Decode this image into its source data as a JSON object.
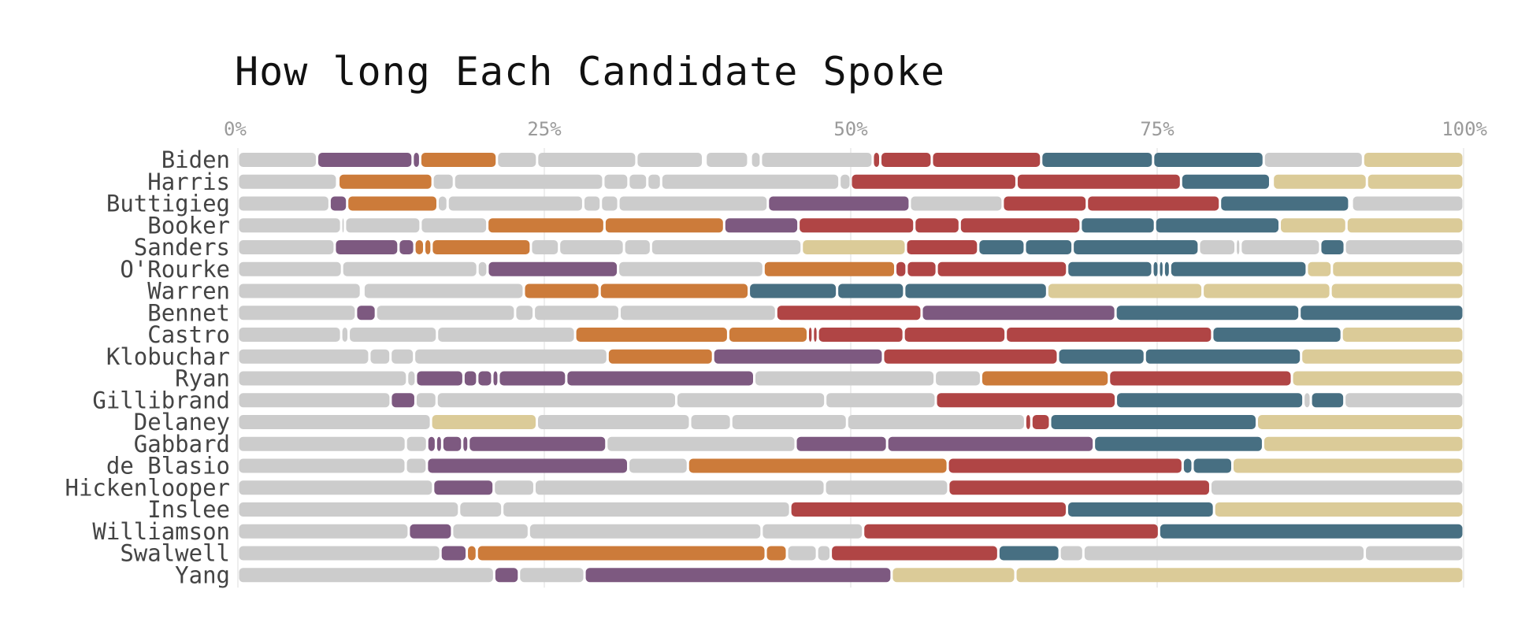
{
  "chart_data": {
    "type": "bar",
    "title": "How long Each Candidate Spoke",
    "xlabel": "",
    "ylabel": "",
    "xlim": [
      0,
      100
    ],
    "x_ticks": [
      "0%",
      "25%",
      "50%",
      "75%",
      "100%"
    ],
    "grid": true,
    "legend": "none",
    "colors": {
      "none": "#cccccc",
      "purple": "#7d5980",
      "orange": "#cc7b3a",
      "red": "#b04545",
      "teal": "#476f82",
      "tan": "#dbcb98"
    },
    "rows": [
      {
        "name": "Biden",
        "segments": [
          [
            "none",
            6.3
          ],
          [
            "purple",
            7.6
          ],
          [
            "purple",
            0.6
          ],
          [
            "orange",
            6.1
          ],
          [
            "none",
            3.2
          ],
          [
            "none",
            7.9
          ],
          [
            "none",
            5.3
          ],
          [
            "none",
            0.2
          ],
          [
            "none",
            3.4
          ],
          [
            "none",
            0.2
          ],
          [
            "none",
            0.8
          ],
          [
            "none",
            8.9
          ],
          [
            "red",
            0.6
          ],
          [
            "red",
            4.1
          ],
          [
            "red",
            8.7
          ],
          [
            "teal",
            8.9
          ],
          [
            "teal",
            8.8
          ],
          [
            "none",
            7.9
          ],
          [
            "tan",
            8.0
          ]
        ]
      },
      {
        "name": "Harris",
        "segments": [
          [
            "none",
            7.9
          ],
          [
            "none",
            0.1
          ],
          [
            "orange",
            7.5
          ],
          [
            "none",
            1.7
          ],
          [
            "none",
            11.9
          ],
          [
            "none",
            2.0
          ],
          [
            "none",
            1.5
          ],
          [
            "none",
            1.1
          ],
          [
            "none",
            14.2
          ],
          [
            "none",
            0.9
          ],
          [
            "red",
            13.2
          ],
          [
            "red",
            13.1
          ],
          [
            "teal",
            7.1
          ],
          [
            "teal",
            0.2
          ],
          [
            "none",
            0.0
          ],
          [
            "tan",
            7.5
          ],
          [
            "tan",
            7.7
          ]
        ]
      },
      {
        "name": "Buttigieg",
        "segments": [
          [
            "none",
            7.3
          ],
          [
            "purple",
            1.4
          ],
          [
            "orange",
            7.2
          ],
          [
            "none",
            0.8
          ],
          [
            "none",
            10.8
          ],
          [
            "none",
            1.4
          ],
          [
            "none",
            1.4
          ],
          [
            "none",
            11.9
          ],
          [
            "purple",
            11.3
          ],
          [
            "none",
            7.4
          ],
          [
            "red",
            6.7
          ],
          [
            "red",
            10.6
          ],
          [
            "teal",
            10.3
          ],
          [
            "none",
            0.2
          ],
          [
            "none",
            8.9
          ]
        ]
      },
      {
        "name": "Booker",
        "segments": [
          [
            "none",
            8.2
          ],
          [
            "none",
            0.3
          ],
          [
            "none",
            6.0
          ],
          [
            "none",
            5.3
          ],
          [
            "orange",
            9.3
          ],
          [
            "orange",
            9.5
          ],
          [
            "purple",
            5.9
          ],
          [
            "red",
            9.2
          ],
          [
            "red",
            3.6
          ],
          [
            "red",
            9.6
          ],
          [
            "teal",
            5.9
          ],
          [
            "teal",
            9.9
          ],
          [
            "tan",
            5.3
          ],
          [
            "tan",
            9.3
          ]
        ]
      },
      {
        "name": "Sanders",
        "segments": [
          [
            "none",
            7.9
          ],
          [
            "purple",
            5.2
          ],
          [
            "purple",
            1.3
          ],
          [
            "orange",
            0.8
          ],
          [
            "orange",
            0.6
          ],
          [
            "orange",
            8.1
          ],
          [
            "none",
            2.3
          ],
          [
            "none",
            5.3
          ],
          [
            "none",
            2.2
          ],
          [
            "none",
            12.3
          ],
          [
            "tan",
            8.5
          ],
          [
            "red",
            5.9
          ],
          [
            "teal",
            3.8
          ],
          [
            "teal",
            3.9
          ],
          [
            "teal",
            10.3
          ],
          [
            "none",
            3.0
          ],
          [
            "none",
            0.4
          ],
          [
            "none",
            6.5
          ],
          [
            "teal",
            2.0
          ],
          [
            "none",
            9.7
          ]
        ]
      },
      {
        "name": "O'Rourke",
        "segments": [
          [
            "none",
            8.3
          ],
          [
            "none",
            10.8
          ],
          [
            "none",
            0.8
          ],
          [
            "purple",
            10.4
          ],
          [
            "none",
            11.6
          ],
          [
            "orange",
            10.5
          ],
          [
            "red",
            0.9
          ],
          [
            "red",
            2.4
          ],
          [
            "red",
            10.4
          ],
          [
            "teal",
            6.8
          ],
          [
            "teal",
            0.5
          ],
          [
            "teal",
            0.4
          ],
          [
            "teal",
            0.5
          ],
          [
            "teal",
            10.9
          ],
          [
            "tan",
            2.0
          ],
          [
            "tan",
            10.5
          ]
        ]
      },
      {
        "name": "Warren",
        "segments": [
          [
            "none",
            9.9
          ],
          [
            "none",
            0.2
          ],
          [
            "none",
            12.9
          ],
          [
            "orange",
            6.1
          ],
          [
            "orange",
            12.0
          ],
          [
            "teal",
            7.1
          ],
          [
            "teal",
            5.4
          ],
          [
            "teal",
            11.5
          ],
          [
            "tan",
            12.5
          ],
          [
            "tan",
            10.3
          ],
          [
            "tan",
            10.7
          ]
        ]
      },
      {
        "name": "Bennet",
        "segments": [
          [
            "none",
            9.5
          ],
          [
            "purple",
            1.6
          ],
          [
            "none",
            11.2
          ],
          [
            "none",
            1.5
          ],
          [
            "none",
            6.9
          ],
          [
            "none",
            12.6
          ],
          [
            "red",
            11.7
          ],
          [
            "purple",
            15.6
          ],
          [
            "teal",
            14.8
          ],
          [
            "teal",
            13.2
          ]
        ]
      },
      {
        "name": "Castro",
        "segments": [
          [
            "none",
            8.3
          ],
          [
            "none",
            0.6
          ],
          [
            "none",
            7.1
          ],
          [
            "none",
            11.1
          ],
          [
            "orange",
            12.3
          ],
          [
            "orange",
            6.4
          ],
          [
            "red",
            0.4
          ],
          [
            "red",
            0.4
          ],
          [
            "red",
            6.9
          ],
          [
            "red",
            8.2
          ],
          [
            "red",
            16.6
          ],
          [
            "teal",
            10.4
          ],
          [
            "tan",
            9.8
          ]
        ]
      },
      {
        "name": "Klobuchar",
        "segments": [
          [
            "none",
            10.6
          ],
          [
            "none",
            1.7
          ],
          [
            "none",
            1.9
          ],
          [
            "none",
            15.6
          ],
          [
            "orange",
            8.5
          ],
          [
            "purple",
            13.7
          ],
          [
            "red",
            14.1
          ],
          [
            "teal",
            7.0
          ],
          [
            "teal",
            12.6
          ],
          [
            "tan",
            13.1
          ]
        ]
      },
      {
        "name": "Ryan",
        "segments": [
          [
            "none",
            13.5
          ],
          [
            "none",
            0.7
          ],
          [
            "purple",
            3.8
          ],
          [
            "purple",
            1.1
          ],
          [
            "purple",
            1.2
          ],
          [
            "purple",
            0.5
          ],
          [
            "purple",
            5.4
          ],
          [
            "purple",
            15.0
          ],
          [
            "none",
            14.4
          ],
          [
            "none",
            3.7
          ],
          [
            "orange",
            10.2
          ],
          [
            "red",
            14.6
          ],
          [
            "tan",
            13.7
          ]
        ]
      },
      {
        "name": "Gillibrand",
        "segments": [
          [
            "none",
            12.3
          ],
          [
            "purple",
            2.0
          ],
          [
            "none",
            1.7
          ],
          [
            "none",
            19.3
          ],
          [
            "none",
            12.0
          ],
          [
            "none",
            8.9
          ],
          [
            "red",
            14.5
          ],
          [
            "teal",
            15.1
          ],
          [
            "none",
            0.6
          ],
          [
            "teal",
            2.7
          ],
          [
            "none",
            9.6
          ]
        ]
      },
      {
        "name": "Delaney",
        "segments": [
          [
            "none",
            15.5
          ],
          [
            "tan",
            8.5
          ],
          [
            "none",
            12.3
          ],
          [
            "none",
            3.3
          ],
          [
            "none",
            9.3
          ],
          [
            "none",
            14.3
          ],
          [
            "red",
            0.5
          ],
          [
            "red",
            1.5
          ],
          [
            "teal",
            16.6
          ],
          [
            "tan",
            16.6
          ]
        ]
      },
      {
        "name": "Gabbard",
        "segments": [
          [
            "none",
            13.4
          ],
          [
            "none",
            1.7
          ],
          [
            "purple",
            0.7
          ],
          [
            "purple",
            0.5
          ],
          [
            "purple",
            1.6
          ],
          [
            "purple",
            0.5
          ],
          [
            "purple",
            11.0
          ],
          [
            "none",
            15.1
          ],
          [
            "purple",
            7.3
          ],
          [
            "purple",
            16.5
          ],
          [
            "teal",
            13.5
          ],
          [
            "tan",
            16.0
          ]
        ]
      },
      {
        "name": "de Blasio",
        "segments": [
          [
            "none",
            13.5
          ],
          [
            "none",
            1.7
          ],
          [
            "purple",
            16.2
          ],
          [
            "none",
            4.8
          ],
          [
            "orange",
            20.9
          ],
          [
            "red",
            18.9
          ],
          [
            "teal",
            0.8
          ],
          [
            "teal",
            3.2
          ],
          [
            "tan",
            18.6
          ]
        ]
      },
      {
        "name": "Hickenlooper",
        "segments": [
          [
            "none",
            15.8
          ],
          [
            "purple",
            4.9
          ],
          [
            "none",
            3.3
          ],
          [
            "none",
            23.5
          ],
          [
            "none",
            10.0
          ],
          [
            "red",
            21.2
          ],
          [
            "none",
            20.5
          ]
        ]
      },
      {
        "name": "Inslee",
        "segments": [
          [
            "none",
            17.9
          ],
          [
            "none",
            3.5
          ],
          [
            "none",
            23.3
          ],
          [
            "red",
            22.4
          ],
          [
            "teal",
            11.9
          ],
          [
            "tan",
            20.2
          ]
        ]
      },
      {
        "name": "Williamson",
        "segments": [
          [
            "none",
            13.8
          ],
          [
            "purple",
            3.5
          ],
          [
            "none",
            6.2
          ],
          [
            "none",
            18.8
          ],
          [
            "none",
            8.2
          ],
          [
            "red",
            23.9
          ],
          [
            "teal",
            24.6
          ]
        ]
      },
      {
        "name": "Swalwell",
        "segments": [
          [
            "none",
            16.2
          ],
          [
            "purple",
            2.1
          ],
          [
            "orange",
            0.8
          ],
          [
            "orange",
            23.1
          ],
          [
            "orange",
            1.7
          ],
          [
            "none",
            2.4
          ],
          [
            "none",
            1.1
          ],
          [
            "red",
            13.4
          ],
          [
            "teal",
            4.9
          ],
          [
            "none",
            1.9
          ],
          [
            "none",
            22.5
          ],
          [
            "none",
            7.9
          ]
        ]
      },
      {
        "name": "Yang",
        "segments": [
          [
            "none",
            20.7
          ],
          [
            "purple",
            2.0
          ],
          [
            "none",
            5.3
          ],
          [
            "purple",
            24.8
          ],
          [
            "tan",
            10.0
          ],
          [
            "tan",
            36.2
          ]
        ]
      }
    ]
  }
}
